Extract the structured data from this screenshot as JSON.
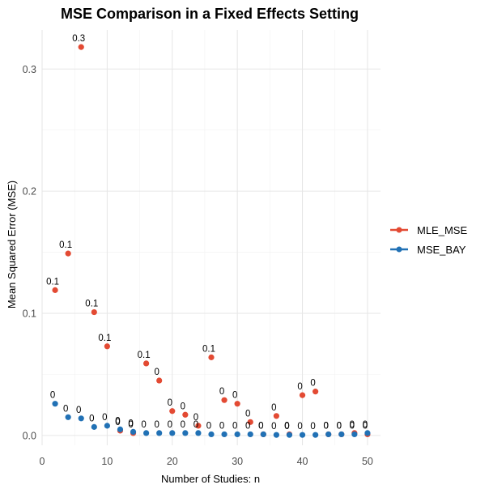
{
  "chart_data": {
    "type": "scatter",
    "title": "MSE Comparison in a Fixed Effects Setting",
    "xlabel": "Number of Studies: n",
    "ylabel": "Mean Squared Error (MSE)",
    "xlim": [
      0,
      52
    ],
    "ylim": [
      -0.008,
      0.332
    ],
    "x_ticks": [
      0,
      10,
      20,
      30,
      40,
      50
    ],
    "y_ticks": [
      0.0,
      0.1,
      0.2,
      0.3
    ],
    "y_tick_labels": [
      "0.0",
      "0.1",
      "0.2",
      "0.3"
    ],
    "grid": true,
    "legend_position": "right",
    "series": [
      {
        "name": "MLE_MSE",
        "color": "#e34a33",
        "x": [
          2,
          4,
          6,
          8,
          10,
          12,
          14,
          16,
          18,
          20,
          22,
          24,
          26,
          28,
          30,
          32,
          34,
          36,
          38,
          40,
          42,
          44,
          46,
          48,
          50
        ],
        "y": [
          0.119,
          0.149,
          0.318,
          0.101,
          0.073,
          0.004,
          0.002,
          0.059,
          0.045,
          0.02,
          0.017,
          0.008,
          0.064,
          0.029,
          0.026,
          0.011,
          0.001,
          0.016,
          0.001,
          0.033,
          0.036,
          0.001,
          0.001,
          0.002,
          0.001
        ],
        "labels": [
          "0.1",
          "0.1",
          "0.3",
          "0.1",
          "0.1",
          "0",
          "0",
          "0.1",
          "0",
          "0",
          "0",
          "0",
          "0.1",
          "0",
          "0",
          "0",
          "0",
          "0",
          "0",
          "0",
          "0",
          "0",
          "0",
          "0",
          "0"
        ]
      },
      {
        "name": "MSE_BAY",
        "color": "#2171b5",
        "x": [
          2,
          4,
          6,
          8,
          10,
          12,
          14,
          16,
          18,
          20,
          22,
          24,
          26,
          28,
          30,
          32,
          34,
          36,
          38,
          40,
          42,
          44,
          46,
          48,
          50
        ],
        "y": [
          0.026,
          0.015,
          0.014,
          0.007,
          0.008,
          0.005,
          0.003,
          0.002,
          0.002,
          0.002,
          0.002,
          0.002,
          0.001,
          0.001,
          0.001,
          0.001,
          0.001,
          0.0005,
          0.0005,
          0.0005,
          0.0005,
          0.001,
          0.001,
          0.001,
          0.002
        ],
        "labels": [
          "0",
          "0",
          "0",
          "0",
          "0",
          "0",
          "0",
          "0",
          "0",
          "0",
          "0",
          "0",
          "0",
          "0",
          "0",
          "0",
          "0",
          "0",
          "0",
          "0",
          "0",
          "0",
          "0",
          "0",
          "0"
        ]
      }
    ]
  }
}
